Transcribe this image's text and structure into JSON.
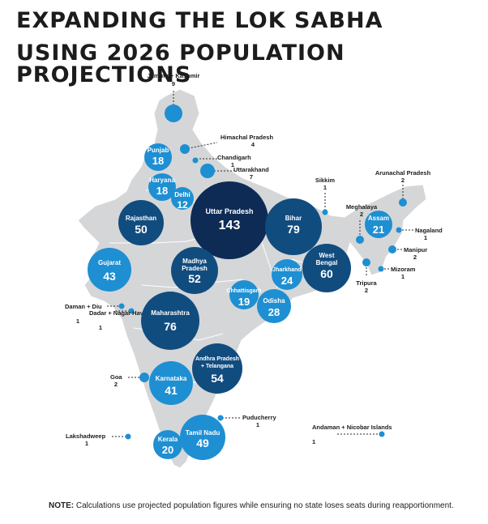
{
  "title_line1": "EXPANDING THE LOK SABHA",
  "title_line2": "USING 2026 POPULATION PROJECTIONS",
  "note_label": "NOTE:",
  "note_text": " Calculations use projected population figures while ensuring no state loses seats during reapportionment.",
  "colors": {
    "light": "#1e8fd2",
    "dark": "#114c7f",
    "darkest": "#0d2b55",
    "map": "#d5d6d8",
    "border": "#ffffff"
  },
  "big_states": [
    {
      "id": "punjab",
      "name": "Punjab",
      "seats": "18",
      "shade": "light"
    },
    {
      "id": "haryana",
      "name": "Haryana",
      "seats": "18",
      "shade": "light"
    },
    {
      "id": "delhi",
      "name": "Delhi",
      "seats": "12",
      "shade": "light"
    },
    {
      "id": "rajasthan",
      "name": "Rajasthan",
      "seats": "50",
      "shade": "dark"
    },
    {
      "id": "up",
      "name": "Uttar Pradesh",
      "seats": "143",
      "shade": "darkest"
    },
    {
      "id": "bihar",
      "name": "Bihar",
      "seats": "79",
      "shade": "dark"
    },
    {
      "id": "assam",
      "name": "Assam",
      "seats": "21",
      "shade": "light"
    },
    {
      "id": "wb",
      "name": "West Bengal",
      "seats": "60",
      "shade": "dark"
    },
    {
      "id": "jharkhand",
      "name": "Jharkhand",
      "seats": "24",
      "shade": "light"
    },
    {
      "id": "gujarat",
      "name": "Gujarat",
      "seats": "43",
      "shade": "light"
    },
    {
      "id": "mp",
      "name": "Madhya Pradesh",
      "seats": "52",
      "shade": "dark"
    },
    {
      "id": "chhattisgarh",
      "name": "Chhattisgarh",
      "seats": "19",
      "shade": "light"
    },
    {
      "id": "odisha",
      "name": "Odisha",
      "seats": "28",
      "shade": "light"
    },
    {
      "id": "maharashtra",
      "name": "Maharashtra",
      "seats": "76",
      "shade": "dark"
    },
    {
      "id": "ap",
      "name": "Andhra Pradesh + Telangana",
      "seats": "54",
      "shade": "dark"
    },
    {
      "id": "karnataka",
      "name": "Karnataka",
      "seats": "41",
      "shade": "light"
    },
    {
      "id": "tn",
      "name": "Tamil Nadu",
      "seats": "49",
      "shade": "light"
    },
    {
      "id": "kerala",
      "name": "Kerala",
      "seats": "20",
      "shade": "light"
    }
  ],
  "small_states": [
    {
      "id": "jk",
      "name": "Jammu + Kashmir",
      "seats": "9",
      "shade": "light"
    },
    {
      "id": "hp",
      "name": "Himachal Pradesh",
      "seats": "4",
      "shade": "light"
    },
    {
      "id": "chandigarh",
      "name": "Chandigarh",
      "seats": "1",
      "shade": "light"
    },
    {
      "id": "uttarakhand",
      "name": "Uttarakhand",
      "seats": "7",
      "shade": "light"
    },
    {
      "id": "sikkim",
      "name": "Sikkim",
      "seats": "1",
      "shade": "light"
    },
    {
      "id": "arunachal",
      "name": "Arunachal Pradesh",
      "seats": "2",
      "shade": "light"
    },
    {
      "id": "meghalaya",
      "name": "Meghalaya",
      "seats": "2",
      "shade": "light"
    },
    {
      "id": "nagaland",
      "name": "Nagaland",
      "seats": "1",
      "shade": "light"
    },
    {
      "id": "manipur",
      "name": "Manipur",
      "seats": "2",
      "shade": "light"
    },
    {
      "id": "mizoram",
      "name": "Mizoram",
      "seats": "1",
      "shade": "light"
    },
    {
      "id": "tripura",
      "name": "Tripura",
      "seats": "2",
      "shade": "light"
    },
    {
      "id": "daman",
      "name": "Daman + Diu",
      "seats": "1",
      "shade": "light"
    },
    {
      "id": "dadar",
      "name": "Dadar + Nagar Haveli",
      "seats": "1",
      "shade": "light"
    },
    {
      "id": "goa",
      "name": "Goa",
      "seats": "2",
      "shade": "light"
    },
    {
      "id": "puducherry",
      "name": "Puducherry",
      "seats": "1",
      "shade": "light"
    },
    {
      "id": "lakshadweep",
      "name": "Lakshadweep",
      "seats": "1",
      "shade": "light"
    },
    {
      "id": "andaman",
      "name": "Andaman + Nicobar Islands",
      "seats": "1",
      "shade": "light"
    }
  ]
}
